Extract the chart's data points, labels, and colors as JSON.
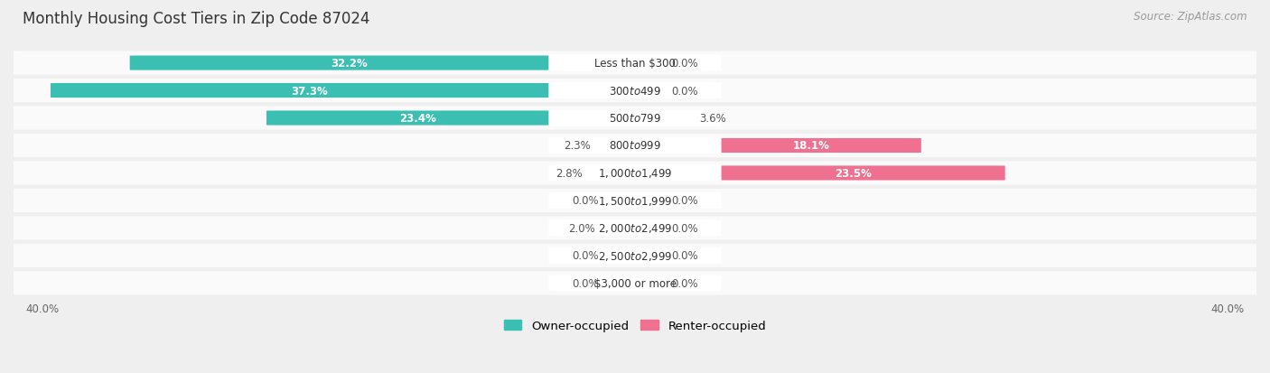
{
  "title": "Monthly Housing Cost Tiers in Zip Code 87024",
  "source": "Source: ZipAtlas.com",
  "categories": [
    "Less than $300",
    "$300 to $499",
    "$500 to $799",
    "$800 to $999",
    "$1,000 to $1,499",
    "$1,500 to $1,999",
    "$2,000 to $2,499",
    "$2,500 to $2,999",
    "$3,000 or more"
  ],
  "owner_values": [
    32.2,
    37.3,
    23.4,
    2.3,
    2.8,
    0.0,
    2.0,
    0.0,
    0.0
  ],
  "renter_values": [
    0.0,
    0.0,
    3.6,
    18.1,
    23.5,
    0.0,
    0.0,
    0.0,
    0.0
  ],
  "owner_color": "#3BBFB2",
  "renter_color": "#F07090",
  "owner_color_light": "#90CFC9",
  "renter_color_light": "#F4AABB",
  "bg_color": "#EFEFEF",
  "row_bg_color": "#FAFAFA",
  "max_value": 40.0,
  "title_fontsize": 12,
  "source_fontsize": 8.5,
  "label_fontsize": 8.5,
  "category_fontsize": 8.5,
  "legend_fontsize": 9.5
}
